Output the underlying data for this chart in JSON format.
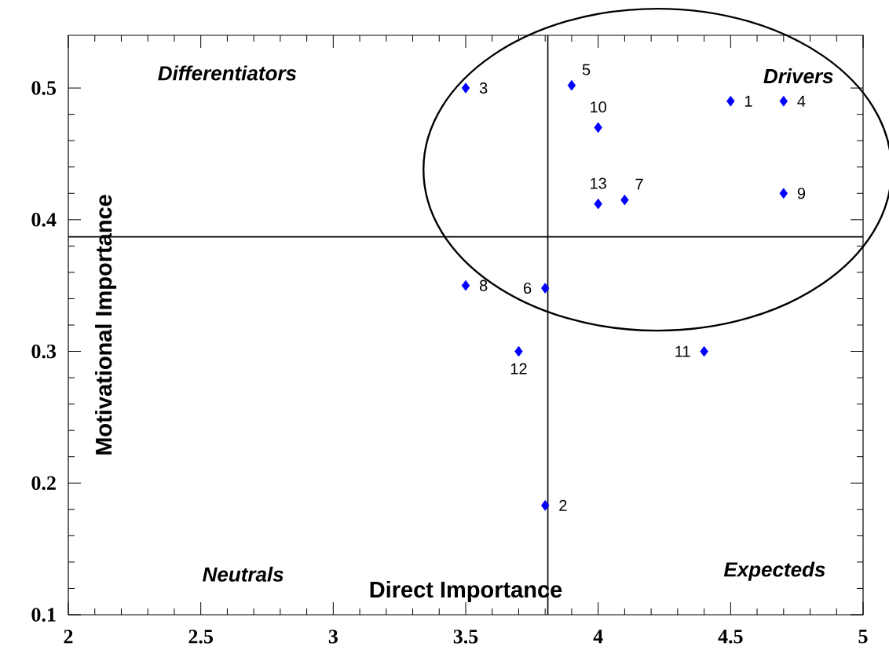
{
  "chart_data": {
    "type": "scatter",
    "xlabel": "Direct Importance",
    "ylabel": "Motivational Importance",
    "x": [
      4.5,
      3.8,
      3.5,
      4.7,
      3.9,
      3.8,
      4.1,
      3.5,
      4.7,
      4.0,
      4.4,
      3.7,
      4.0
    ],
    "values": [
      0.49,
      0.183,
      0.5,
      0.49,
      0.502,
      0.348,
      0.415,
      0.35,
      0.42,
      0.47,
      0.3,
      0.3,
      0.412
    ],
    "color": "#0000ff",
    "marker": "diamond",
    "xlim": [
      2,
      5
    ],
    "ylim": [
      0.1,
      0.54
    ],
    "xticks": [
      2,
      2.5,
      3,
      3.5,
      4,
      4.5,
      5
    ],
    "yticks": [
      0.1,
      0.2,
      0.3,
      0.4,
      0.5
    ],
    "grid": false,
    "ref_lines": [
      {
        "axis": "x",
        "value": 3.81,
        "color": "#000000"
      },
      {
        "axis": "y",
        "value": 0.387,
        "color": "#000000"
      }
    ],
    "annotations": [
      "Differentiators",
      "Drivers",
      "Neutrals",
      "Expecteds",
      {
        "text": "1",
        "x": 4.5,
        "y": 0.49
      },
      {
        "text": "2",
        "x": 3.8,
        "y": 0.183
      },
      {
        "text": "3",
        "x": 3.5,
        "y": 0.5
      },
      {
        "text": "4",
        "x": 4.7,
        "y": 0.49
      },
      {
        "text": "5",
        "x": 3.9,
        "y": 0.502
      },
      {
        "text": "6",
        "x": 3.8,
        "y": 0.348
      },
      {
        "text": "7",
        "x": 4.1,
        "y": 0.415
      },
      {
        "text": "8",
        "x": 3.5,
        "y": 0.35
      },
      {
        "text": "9",
        "x": 4.7,
        "y": 0.42
      },
      {
        "text": "10",
        "x": 4.0,
        "y": 0.47
      },
      {
        "text": "11",
        "x": 4.4,
        "y": 0.3
      },
      {
        "text": "12",
        "x": 3.7,
        "y": 0.3
      },
      {
        "text": "13",
        "x": 4.0,
        "y": 0.412
      }
    ]
  }
}
